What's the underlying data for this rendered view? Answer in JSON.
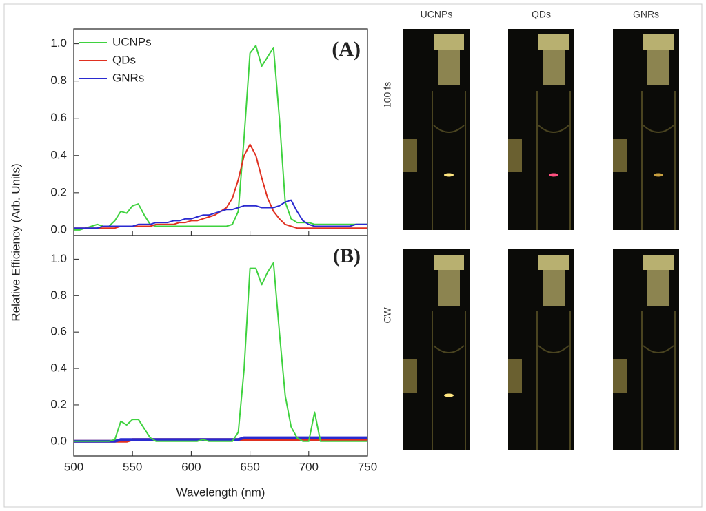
{
  "chart_data": [
    {
      "type": "line",
      "annotation": "(A)",
      "ylabel": "Relative Efficiency (Arb. Units)",
      "legend": "upper left",
      "x": [
        500,
        505,
        510,
        515,
        520,
        525,
        530,
        535,
        540,
        545,
        550,
        555,
        560,
        565,
        570,
        575,
        580,
        585,
        590,
        595,
        600,
        605,
        610,
        615,
        620,
        625,
        630,
        635,
        640,
        645,
        650,
        655,
        660,
        665,
        670,
        675,
        680,
        685,
        690,
        695,
        700,
        705,
        710,
        715,
        720,
        725,
        730,
        735,
        740,
        745,
        750
      ],
      "series": [
        {
          "name": "UCNPs",
          "color": "#3fd23f",
          "values": [
            0,
            0,
            0.01,
            0.02,
            0.03,
            0.02,
            0.02,
            0.05,
            0.1,
            0.09,
            0.13,
            0.14,
            0.08,
            0.03,
            0.02,
            0.02,
            0.02,
            0.02,
            0.02,
            0.02,
            0.02,
            0.02,
            0.02,
            0.02,
            0.02,
            0.02,
            0.02,
            0.03,
            0.1,
            0.5,
            0.95,
            0.99,
            0.88,
            0.93,
            0.98,
            0.6,
            0.15,
            0.06,
            0.04,
            0.04,
            0.04,
            0.03,
            0.03,
            0.03,
            0.03,
            0.03,
            0.03,
            0.03,
            0.03,
            0.03,
            0.03
          ]
        },
        {
          "name": "QDs",
          "color": "#e03020",
          "values": [
            0.01,
            0.01,
            0.01,
            0.01,
            0.01,
            0.01,
            0.01,
            0.01,
            0.02,
            0.02,
            0.02,
            0.02,
            0.02,
            0.02,
            0.03,
            0.03,
            0.03,
            0.03,
            0.04,
            0.04,
            0.05,
            0.05,
            0.06,
            0.07,
            0.08,
            0.1,
            0.12,
            0.17,
            0.27,
            0.4,
            0.46,
            0.4,
            0.28,
            0.17,
            0.1,
            0.06,
            0.03,
            0.02,
            0.01,
            0.01,
            0.01,
            0.01,
            0.01,
            0.01,
            0.01,
            0.01,
            0.01,
            0.01,
            0.01,
            0.01,
            0.01
          ]
        },
        {
          "name": "GNRs",
          "color": "#2a2ad0",
          "values": [
            0.01,
            0.01,
            0.01,
            0.01,
            0.01,
            0.02,
            0.02,
            0.02,
            0.02,
            0.02,
            0.02,
            0.03,
            0.03,
            0.03,
            0.04,
            0.04,
            0.04,
            0.05,
            0.05,
            0.06,
            0.06,
            0.07,
            0.08,
            0.08,
            0.09,
            0.1,
            0.11,
            0.11,
            0.12,
            0.13,
            0.13,
            0.13,
            0.12,
            0.12,
            0.12,
            0.13,
            0.15,
            0.16,
            0.1,
            0.05,
            0.03,
            0.02,
            0.02,
            0.02,
            0.02,
            0.02,
            0.02,
            0.02,
            0.03,
            0.03,
            0.03
          ]
        }
      ],
      "xlim": [
        500,
        750
      ],
      "xticks": [
        500,
        550,
        600,
        650,
        700,
        750
      ],
      "ylim": [
        -0.03,
        1.08
      ],
      "yticks": [
        {
          "value": 0,
          "label": "0.0"
        },
        0.2,
        0.4,
        0.6,
        0.8,
        {
          "value": 1,
          "label": "1.0"
        }
      ]
    },
    {
      "type": "line",
      "annotation": "(B)",
      "xlabel": "Wavelength (nm)",
      "x": [
        500,
        505,
        510,
        515,
        520,
        525,
        530,
        535,
        540,
        545,
        550,
        555,
        560,
        565,
        570,
        575,
        580,
        585,
        590,
        595,
        600,
        605,
        610,
        615,
        620,
        625,
        630,
        635,
        640,
        645,
        650,
        655,
        660,
        665,
        670,
        675,
        680,
        685,
        690,
        695,
        700,
        705,
        710,
        715,
        720,
        725,
        730,
        735,
        740,
        745,
        750
      ],
      "series": [
        {
          "color": "#e03020",
          "values": [
            0,
            0,
            0,
            0,
            0,
            0,
            0,
            0,
            0,
            0,
            0.01,
            0.01,
            0.01,
            0.01,
            0.01,
            0.01,
            0.01,
            0.01,
            0.01,
            0.01,
            0.01,
            0.01,
            0.01,
            0.01,
            0.01,
            0.01,
            0.01,
            0.01,
            0.01,
            0.01,
            0.01,
            0.01,
            0.01,
            0.01,
            0.01,
            0.01,
            0.01,
            0.01,
            0.01,
            0.01,
            0.01,
            0.01,
            0.01,
            0.01,
            0.01,
            0.01,
            0.01,
            0.01,
            0.01,
            0.01,
            0.01
          ]
        },
        {
          "color": "#2a2ad0",
          "values": [
            0,
            0,
            0,
            0,
            0,
            0,
            0,
            0,
            0.01,
            0.01,
            0.01,
            0.01,
            0.01,
            0.01,
            0.01,
            0.01,
            0.01,
            0.01,
            0.01,
            0.01,
            0.01,
            0.01,
            0.01,
            0.01,
            0.01,
            0.01,
            0.01,
            0.01,
            0.01,
            0.02,
            0.02,
            0.02,
            0.02,
            0.02,
            0.02,
            0.02,
            0.02,
            0.02,
            0.02,
            0.02,
            0.02,
            0.02,
            0.02,
            0.02,
            0.02,
            0.02,
            0.02,
            0.02,
            0.02,
            0.02,
            0.02
          ]
        },
        {
          "color": "#3fd23f",
          "values": [
            0,
            0,
            0,
            0,
            0,
            0,
            0,
            0.01,
            0.11,
            0.09,
            0.12,
            0.12,
            0.07,
            0.02,
            0,
            0,
            0,
            0,
            0,
            0,
            0,
            0,
            0.01,
            0,
            0,
            0,
            0,
            0,
            0.05,
            0.4,
            0.95,
            0.95,
            0.86,
            0.93,
            0.98,
            0.6,
            0.25,
            0.08,
            0.02,
            0,
            0,
            0.16,
            0,
            0,
            0,
            0,
            0,
            0,
            0,
            0,
            0
          ]
        }
      ],
      "xlim": [
        500,
        750
      ],
      "xticks": [
        500,
        550,
        600,
        650,
        700,
        750
      ],
      "ylim": [
        -0.08,
        1.13
      ],
      "yticks": [
        {
          "value": 0,
          "label": "0.0"
        },
        0.2,
        0.4,
        0.6,
        0.8,
        {
          "value": 1,
          "label": "1.0"
        }
      ]
    }
  ],
  "photos": {
    "columns": [
      "UCNPs",
      "QDs",
      "GNRs"
    ],
    "rows": [
      "100 fs",
      "CW"
    ]
  }
}
